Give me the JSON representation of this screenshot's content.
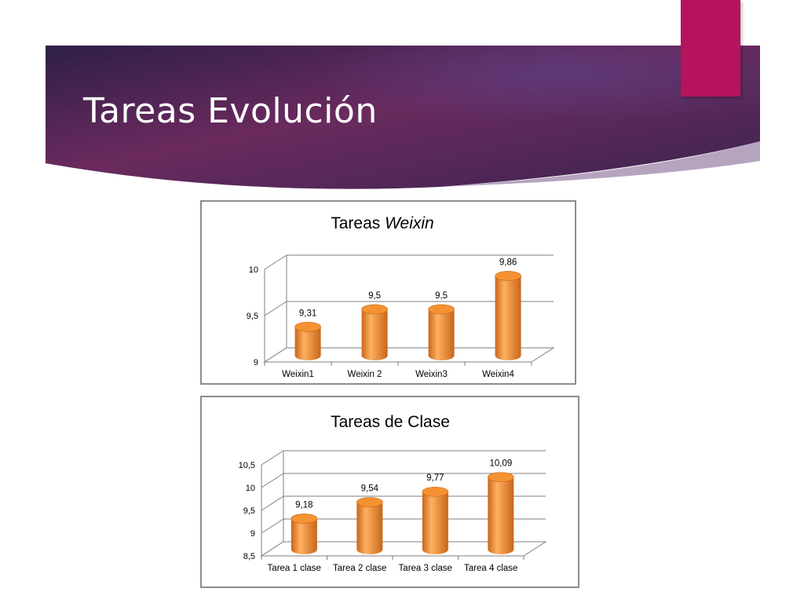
{
  "slide": {
    "title": "Tareas Evolución"
  },
  "colors": {
    "banner_start": "#2e1f47",
    "banner_mid": "#6a2a5e",
    "banner_end": "#3a2450",
    "accent": "#b5145c",
    "bar_light": "#ffb060",
    "bar_main": "#f59232",
    "bar_dark": "#c8661a"
  },
  "chart_data": [
    {
      "type": "bar",
      "title_plain": "Tareas ",
      "title_italic": "Weixin",
      "categories": [
        "Weixin1",
        "Weixin 2",
        "Weixin3",
        "Weixin4"
      ],
      "values": [
        9.31,
        9.5,
        9.5,
        9.86
      ],
      "value_labels": [
        "9,31",
        "9,5",
        "9,5",
        "9,86"
      ],
      "yticks": [
        9,
        9.5,
        10
      ],
      "ytick_labels": [
        "9",
        "9,5",
        "10"
      ],
      "ylim": [
        9,
        10
      ],
      "grid": true,
      "style": "3d-cylinder"
    },
    {
      "type": "bar",
      "title_plain": "Tareas de Clase",
      "title_italic": "",
      "categories": [
        "Tarea 1 clase",
        "Tarea 2 clase",
        "Tarea 3 clase",
        "Tarea  4 clase"
      ],
      "values": [
        9.18,
        9.54,
        9.77,
        10.09
      ],
      "value_labels": [
        "9,18",
        "9,54",
        "9,77",
        "10,09"
      ],
      "yticks": [
        8.5,
        9,
        9.5,
        10,
        10.5
      ],
      "ytick_labels": [
        "8,5",
        "9",
        "9,5",
        "10",
        "10,5"
      ],
      "ylim": [
        8.5,
        10.5
      ],
      "grid": true,
      "style": "3d-cylinder"
    }
  ]
}
